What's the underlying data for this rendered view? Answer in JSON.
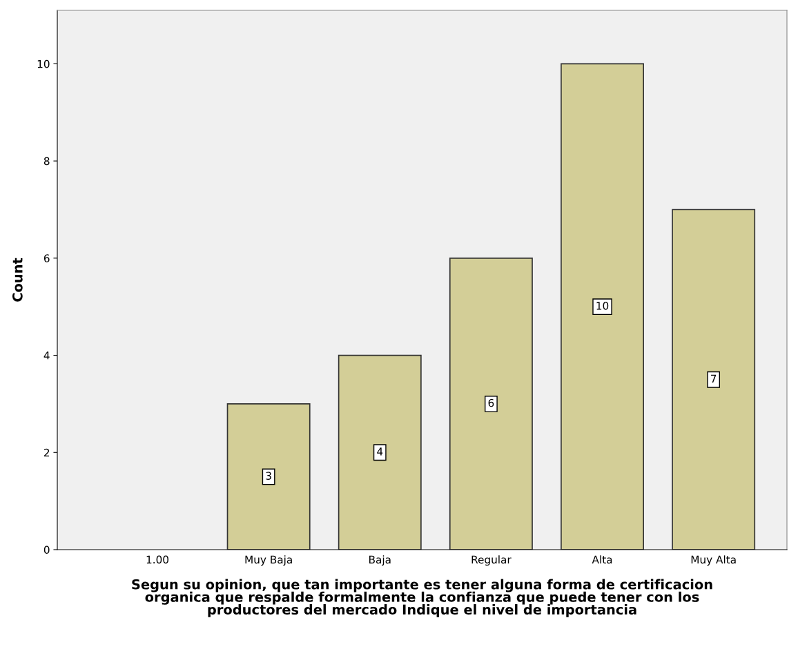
{
  "chart_data": {
    "type": "bar",
    "categories": [
      "1.00",
      "Muy Baja",
      "Baja",
      "Regular",
      "Alta",
      "Muy Alta"
    ],
    "values": [
      0,
      3,
      4,
      6,
      10,
      7
    ],
    "value_labels": [
      null,
      "3",
      "4",
      "6",
      "10",
      "7"
    ],
    "color": "#d3ce97",
    "xlabel": "Segun su opinion, que tan importante es tener alguna forma de certificacion\norganica que respalde formalmente la confianza que puede tener con los\nproductores del mercado Indique el nivel de importancia",
    "ylabel": "Count",
    "ylim": [
      0,
      11.1
    ],
    "yticks": [
      0,
      2,
      4,
      6,
      8,
      10
    ],
    "grid": false,
    "legend": false
  }
}
